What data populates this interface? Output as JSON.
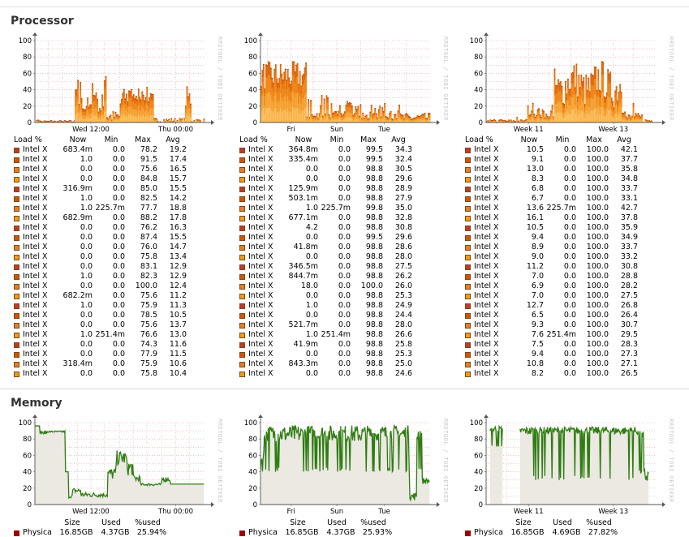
{
  "sections": {
    "processor_title": "Processor",
    "memory_title": "Memory"
  },
  "watermark": "RRDTOOL / TOBI OETIKER",
  "y_ticks": [
    "100",
    "80",
    "60",
    "40",
    "20",
    "0"
  ],
  "processor": {
    "graphs": [
      {
        "x_labels": [
          "Wed 12:00",
          "Thu 00:00"
        ]
      },
      {
        "x_labels": [
          "Fri",
          "Sun",
          "Tue"
        ]
      },
      {
        "x_labels": [
          "Week 11",
          "Week 13"
        ]
      }
    ],
    "legend_header": [
      "Load %",
      "Now",
      "Min",
      "Max",
      "Avg"
    ],
    "legends": [
      [
        [
          "Intel X",
          "683.4m",
          "0.0",
          "78.2",
          "19.2"
        ],
        [
          "Intel X",
          "1.0",
          "0.0",
          "91.5",
          "17.4"
        ],
        [
          "Intel X",
          "0.0",
          "0.0",
          "75.6",
          "16.5"
        ],
        [
          "Intel X",
          "0.0",
          "0.0",
          "84.8",
          "15.7"
        ],
        [
          "Intel X",
          "316.9m",
          "0.0",
          "85.0",
          "15.5"
        ],
        [
          "Intel X",
          "1.0",
          "0.0",
          "82.5",
          "14.2"
        ],
        [
          "Intel X",
          "1.0",
          "225.7m",
          "77.7",
          "18.8"
        ],
        [
          "Intel X",
          "682.9m",
          "0.0",
          "88.2",
          "17.8"
        ],
        [
          "Intel X",
          "0.0",
          "0.0",
          "76.2",
          "16.3"
        ],
        [
          "Intel X",
          "0.0",
          "0.0",
          "87.4",
          "15.5"
        ],
        [
          "Intel X",
          "0.0",
          "0.0",
          "76.0",
          "14.7"
        ],
        [
          "Intel X",
          "0.0",
          "0.0",
          "75.8",
          "13.4"
        ],
        [
          "Intel X",
          "0.0",
          "0.0",
          "83.1",
          "12.9"
        ],
        [
          "Intel X",
          "1.0",
          "0.0",
          "82.3",
          "12.9"
        ],
        [
          "Intel X",
          "0.0",
          "0.0",
          "100.0",
          "12.4"
        ],
        [
          "Intel X",
          "682.2m",
          "0.0",
          "75.6",
          "11.2"
        ],
        [
          "Intel X",
          "1.0",
          "0.0",
          "75.9",
          "11.3"
        ],
        [
          "Intel X",
          "0.0",
          "0.0",
          "78.5",
          "10.5"
        ],
        [
          "Intel X",
          "0.0",
          "0.0",
          "75.6",
          "13.7"
        ],
        [
          "Intel X",
          "1.0",
          "251.4m",
          "76.6",
          "13.0"
        ],
        [
          "Intel X",
          "0.0",
          "0.0",
          "74.3",
          "11.6"
        ],
        [
          "Intel X",
          "0.0",
          "0.0",
          "77.9",
          "11.5"
        ],
        [
          "Intel X",
          "318.4m",
          "0.0",
          "75.9",
          "10.6"
        ],
        [
          "Intel X",
          "0.0",
          "0.0",
          "75.8",
          "10.4"
        ]
      ],
      [
        [
          "Intel X",
          "364.8m",
          "0.0",
          "99.5",
          "34.3"
        ],
        [
          "Intel X",
          "335.4m",
          "0.0",
          "99.5",
          "32.4"
        ],
        [
          "Intel X",
          "0.0",
          "0.0",
          "98.8",
          "30.5"
        ],
        [
          "Intel X",
          "0.0",
          "0.0",
          "98.8",
          "29.6"
        ],
        [
          "Intel X",
          "125.9m",
          "0.0",
          "98.8",
          "28.9"
        ],
        [
          "Intel X",
          "503.1m",
          "0.0",
          "98.8",
          "27.9"
        ],
        [
          "Intel X",
          "1.0",
          "225.7m",
          "99.8",
          "35.0"
        ],
        [
          "Intel X",
          "677.1m",
          "0.0",
          "98.8",
          "32.8"
        ],
        [
          "Intel X",
          "4.2",
          "0.0",
          "98.8",
          "30.8"
        ],
        [
          "Intel X",
          "0.0",
          "0.0",
          "99.5",
          "29.6"
        ],
        [
          "Intel X",
          "41.8m",
          "0.0",
          "98.8",
          "28.6"
        ],
        [
          "Intel X",
          "0.0",
          "0.0",
          "98.8",
          "28.0"
        ],
        [
          "Intel X",
          "346.5m",
          "0.0",
          "98.8",
          "27.5"
        ],
        [
          "Intel X",
          "844.7m",
          "0.0",
          "98.8",
          "26.2"
        ],
        [
          "Intel X",
          "18.0",
          "0.0",
          "100.0",
          "26.0"
        ],
        [
          "Intel X",
          "0.0",
          "0.0",
          "98.8",
          "25.3"
        ],
        [
          "Intel X",
          "1.0",
          "0.0",
          "98.8",
          "24.9"
        ],
        [
          "Intel X",
          "0.0",
          "0.0",
          "98.8",
          "24.4"
        ],
        [
          "Intel X",
          "521.7m",
          "0.0",
          "98.8",
          "28.0"
        ],
        [
          "Intel X",
          "1.0",
          "251.4m",
          "98.8",
          "26.6"
        ],
        [
          "Intel X",
          "41.9m",
          "0.0",
          "98.8",
          "25.8"
        ],
        [
          "Intel X",
          "0.0",
          "0.0",
          "98.8",
          "25.3"
        ],
        [
          "Intel X",
          "843.3m",
          "0.0",
          "98.8",
          "25.0"
        ],
        [
          "Intel X",
          "0.0",
          "0.0",
          "98.8",
          "24.6"
        ]
      ],
      [
        [
          "Intel X",
          "10.5",
          "0.0",
          "100.0",
          "42.1"
        ],
        [
          "Intel X",
          "9.1",
          "0.0",
          "100.0",
          "37.7"
        ],
        [
          "Intel X",
          "13.0",
          "0.0",
          "100.0",
          "35.8"
        ],
        [
          "Intel X",
          "8.3",
          "0.0",
          "100.0",
          "34.8"
        ],
        [
          "Intel X",
          "6.8",
          "0.0",
          "100.0",
          "33.7"
        ],
        [
          "Intel X",
          "6.7",
          "0.0",
          "100.0",
          "33.1"
        ],
        [
          "Intel X",
          "13.6",
          "225.7m",
          "100.0",
          "42.7"
        ],
        [
          "Intel X",
          "16.1",
          "0.0",
          "100.0",
          "37.8"
        ],
        [
          "Intel X",
          "10.5",
          "0.0",
          "100.0",
          "35.9"
        ],
        [
          "Intel X",
          "9.4",
          "0.0",
          "100.0",
          "34.9"
        ],
        [
          "Intel X",
          "8.9",
          "0.0",
          "100.0",
          "33.7"
        ],
        [
          "Intel X",
          "9.0",
          "0.0",
          "100.0",
          "33.2"
        ],
        [
          "Intel X",
          "11.2",
          "0.0",
          "100.0",
          "30.8"
        ],
        [
          "Intel X",
          "7.0",
          "0.0",
          "100.0",
          "28.8"
        ],
        [
          "Intel X",
          "6.9",
          "0.0",
          "100.0",
          "28.2"
        ],
        [
          "Intel X",
          "7.0",
          "0.0",
          "100.0",
          "27.5"
        ],
        [
          "Intel X",
          "12.7",
          "0.0",
          "100.0",
          "26.8"
        ],
        [
          "Intel X",
          "6.5",
          "0.0",
          "100.0",
          "26.4"
        ],
        [
          "Intel X",
          "9.3",
          "0.0",
          "100.0",
          "30.7"
        ],
        [
          "Intel X",
          "7.6",
          "251.4m",
          "100.0",
          "29.5"
        ],
        [
          "Intel X",
          "7.5",
          "0.0",
          "100.0",
          "28.3"
        ],
        [
          "Intel X",
          "9.4",
          "0.0",
          "100.0",
          "27.3"
        ],
        [
          "Intel X",
          "10.8",
          "0.0",
          "100.0",
          "27.1"
        ],
        [
          "Intel X",
          "8.2",
          "0.0",
          "100.0",
          "26.5"
        ]
      ]
    ]
  },
  "memory": {
    "graphs": [
      {
        "x_labels": [
          "Wed 12:00",
          "Thu 00:00"
        ]
      },
      {
        "x_labels": [
          "Fri",
          "Sun",
          "Tue"
        ]
      },
      {
        "x_labels": [
          "Week 11",
          "Week 13"
        ]
      }
    ],
    "legend_header": [
      "Size",
      "Used",
      "%used"
    ],
    "legends": [
      [
        "Physica",
        "16.85GB",
        "4.37GB",
        "25.94%"
      ],
      [
        "Physica",
        "16.85GB",
        "4.37GB",
        "25.93%"
      ],
      [
        "Physica",
        "16.85GB",
        "4.69GB",
        "27.82%"
      ]
    ]
  },
  "colors": {
    "swatches": [
      "#c0392b",
      "#d35400",
      "#e67e22",
      "#f39c12"
    ],
    "memory_line": "#2e7d12",
    "memory_fill": "#ece8e2",
    "memory_swatch": "#a00000"
  }
}
